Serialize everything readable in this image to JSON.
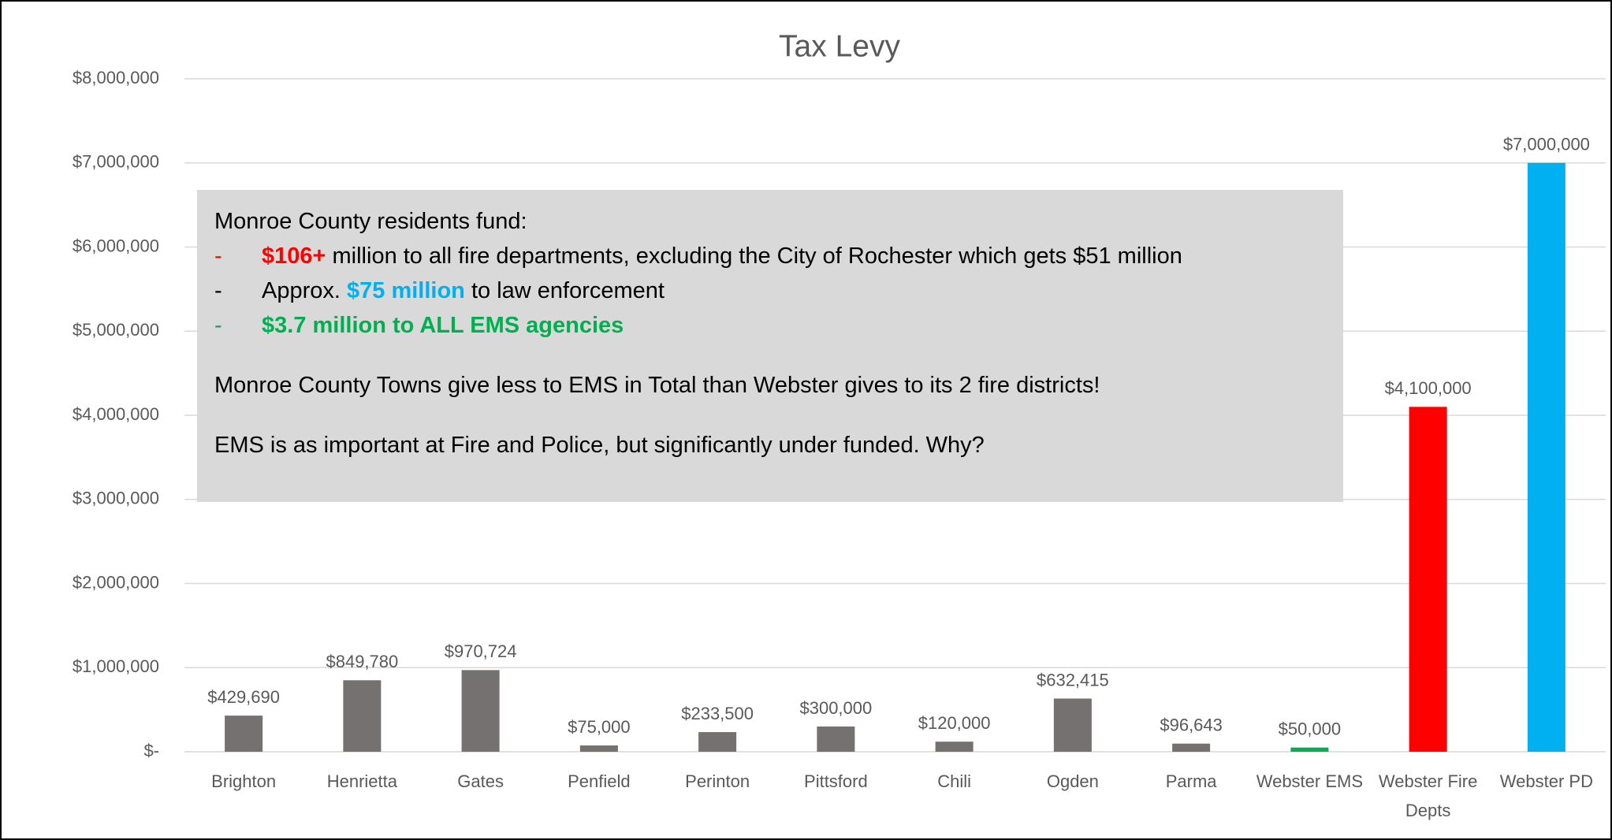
{
  "chart_data": {
    "type": "bar",
    "title": "Tax Levy",
    "categories": [
      "Brighton",
      "Henrietta",
      "Gates",
      "Penfield",
      "Perinton",
      "Pittsford",
      "Chili",
      "Ogden",
      "Parma",
      "Webster EMS",
      "Webster Fire Depts",
      "Webster PD"
    ],
    "values": [
      429690,
      849780,
      970724,
      75000,
      233500,
      300000,
      120000,
      632415,
      96643,
      50000,
      4100000,
      7000000
    ],
    "value_labels": [
      "$429,690",
      "$849,780",
      "$970,724",
      "$75,000",
      "$233,500",
      "$300,000",
      "$120,000",
      "$632,415",
      "$96,643",
      "$50,000",
      "$4,100,000",
      "$7,000,000"
    ],
    "colors": [
      "#767171",
      "#767171",
      "#767171",
      "#767171",
      "#767171",
      "#767171",
      "#767171",
      "#767171",
      "#767171",
      "#00b050",
      "#ff0000",
      "#00b0f0"
    ],
    "ylim": [
      0,
      8000000
    ],
    "yticks": [
      {
        "value": 0,
        "label": "$-"
      },
      {
        "value": 1000000,
        "label": "$1,000,000"
      },
      {
        "value": 2000000,
        "label": "$2,000,000"
      },
      {
        "value": 3000000,
        "label": "$3,000,000"
      },
      {
        "value": 4000000,
        "label": "$4,000,000"
      },
      {
        "value": 5000000,
        "label": "$5,000,000"
      },
      {
        "value": 6000000,
        "label": "$6,000,000"
      },
      {
        "value": 7000000,
        "label": "$7,000,000"
      },
      {
        "value": 8000000,
        "label": "$8,000,000"
      }
    ],
    "grid": true,
    "annotation": {
      "heading": "Monroe County residents fund:",
      "bullets": [
        {
          "marker": "-",
          "marker_color": "#ff0000",
          "parts": [
            {
              "text": "$106+",
              "color": "#ff0000",
              "bold": true
            },
            {
              "text": " million to all fire departments, excluding the City of Rochester which gets $51 million"
            }
          ]
        },
        {
          "marker": "-",
          "parts": [
            {
              "text": "Approx. "
            },
            {
              "text": "$75 million",
              "color": "#00b0f0",
              "bold": true
            },
            {
              "text": " to law enforcement"
            }
          ]
        },
        {
          "marker": "-",
          "marker_color": "#00b050",
          "parts": [
            {
              "text": "$3.7 million to ALL EMS agencies",
              "color": "#00b050",
              "bold": true
            }
          ]
        }
      ],
      "paragraphs": [
        "Monroe County Towns give less to EMS in Total than Webster gives to its 2 fire districts!",
        "EMS is as important at Fire and Police, but significantly under funded. Why?"
      ]
    }
  }
}
